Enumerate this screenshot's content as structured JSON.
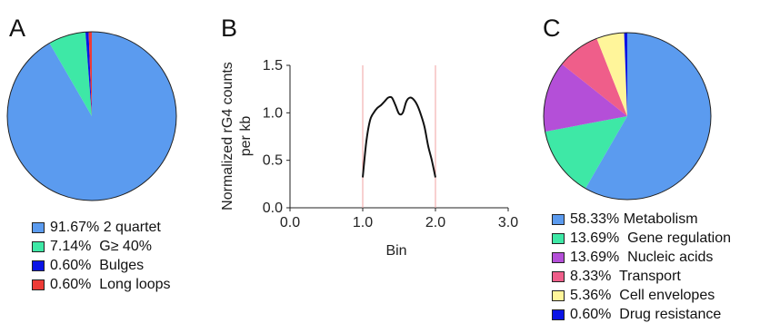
{
  "panels": {
    "a_letter": "A",
    "b_letter": "B",
    "c_letter": "C"
  },
  "chart_data": [
    {
      "type": "pie",
      "categories": [
        "2 quartet",
        "G≥ 40%",
        "Bulges",
        "Long loops"
      ],
      "values": [
        91.67,
        7.14,
        0.6,
        0.6
      ],
      "legend_labels": [
        "91.67% 2 quartet",
        "7.14%  G≥ 40%",
        "0.60%  Bulges",
        "0.60%  Long loops"
      ],
      "colors": [
        "#5b9bef",
        "#3ee8a6",
        "#0a14e6",
        "#ee3b36"
      ],
      "legend": "bottom"
    },
    {
      "type": "line",
      "xlabel": "Bin",
      "ylabel_lines": [
        "Normalized rG4 counts",
        "per kb"
      ],
      "xlim": [
        0.0,
        3.0
      ],
      "ylim": [
        0.0,
        1.5
      ],
      "xticks": [
        "0.0",
        "1.0",
        "2.0",
        "3.0"
      ],
      "yticks": [
        "0.0",
        "0.5",
        "1.0",
        "1.5"
      ],
      "vlines": [
        1.0,
        2.0
      ],
      "vline_color": "#f2a0a0",
      "line_color": "#111111",
      "series": [
        {
          "x": [
            1.0,
            1.05,
            1.1,
            1.15,
            1.2,
            1.25,
            1.3,
            1.35,
            1.4,
            1.45,
            1.5,
            1.55,
            1.6,
            1.65,
            1.7,
            1.75,
            1.8,
            1.85,
            1.9,
            1.95,
            2.0
          ],
          "values": [
            0.32,
            0.7,
            0.92,
            1.0,
            1.05,
            1.08,
            1.12,
            1.16,
            1.16,
            1.08,
            0.99,
            1.0,
            1.12,
            1.16,
            1.14,
            1.08,
            0.98,
            0.85,
            0.65,
            0.5,
            0.32
          ]
        }
      ]
    },
    {
      "type": "pie",
      "categories": [
        "Metabolism",
        "Gene regulation",
        "Nucleic acids",
        "Transport",
        "Cell envelopes",
        "Drug resistance"
      ],
      "values": [
        58.33,
        13.69,
        13.69,
        8.33,
        5.36,
        0.6
      ],
      "legend_labels": [
        "58.33% Metabolism",
        "13.69%  Gene regulation",
        "13.69%  Nucleic acids",
        "8.33%  Transport",
        "5.36%  Cell envelopes",
        "0.60%  Drug resistance"
      ],
      "colors": [
        "#5b9bef",
        "#3ee8a6",
        "#b44fd8",
        "#ef5e8a",
        "#fff59a",
        "#0a14e6"
      ],
      "legend": "bottom"
    }
  ]
}
